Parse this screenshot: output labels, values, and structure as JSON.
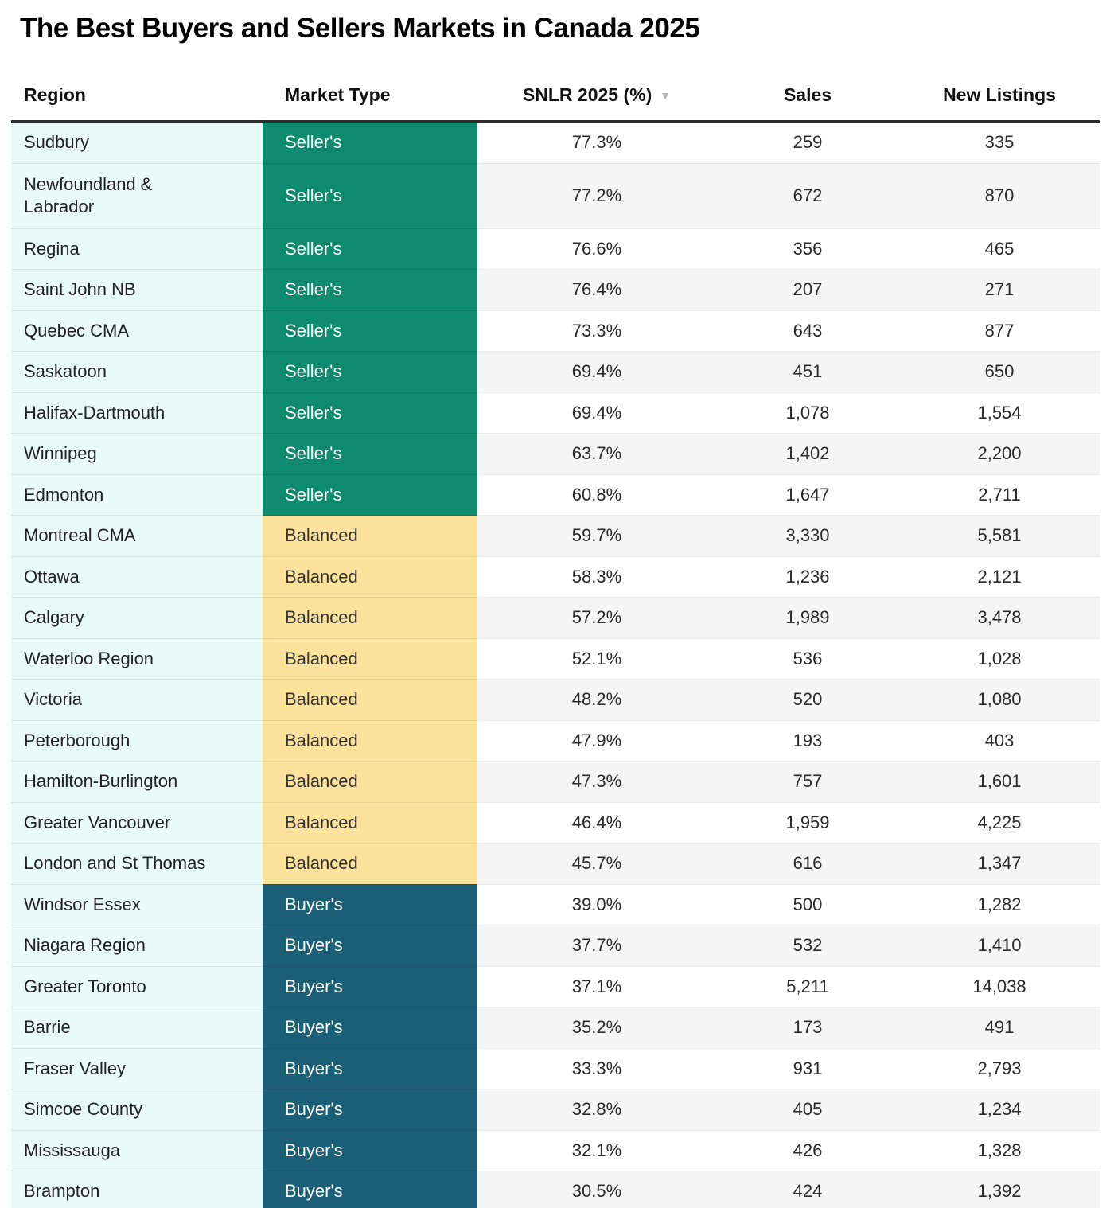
{
  "title": "The Best Buyers and Sellers Markets in Canada 2025",
  "icons": {
    "sort_descending": "▼"
  },
  "colors": {
    "sellers_green": "#0E8A6E",
    "balanced_yellow": "#FDE29B",
    "buyers_blue": "#1B5F76",
    "region_column_bg": "#EAFAF9",
    "alt_row_bg": "#F5F5F5",
    "header_rule": "#2D2D2D"
  },
  "chart_data": {
    "type": "table",
    "title": "The Best Buyers and Sellers Markets in Canada 2025",
    "columns": [
      "Region",
      "Market Type",
      "SNLR 2025 (%)",
      "Sales",
      "New Listings"
    ],
    "sorted_by": "SNLR 2025 (%)",
    "sort_direction": "descending",
    "market_type_legend": [
      "Seller's",
      "Balanced",
      "Buyer's"
    ],
    "rows": [
      {
        "region": "Sudbury",
        "market_type": "Seller's",
        "snlr": "77.3%",
        "sales": "259",
        "new_listings": "335"
      },
      {
        "region": "Newfoundland & Labrador",
        "market_type": "Seller's",
        "snlr": "77.2%",
        "sales": "672",
        "new_listings": "870"
      },
      {
        "region": "Regina",
        "market_type": "Seller's",
        "snlr": "76.6%",
        "sales": "356",
        "new_listings": "465"
      },
      {
        "region": "Saint John NB",
        "market_type": "Seller's",
        "snlr": "76.4%",
        "sales": "207",
        "new_listings": "271"
      },
      {
        "region": "Quebec CMA",
        "market_type": "Seller's",
        "snlr": "73.3%",
        "sales": "643",
        "new_listings": "877"
      },
      {
        "region": "Saskatoon",
        "market_type": "Seller's",
        "snlr": "69.4%",
        "sales": "451",
        "new_listings": "650"
      },
      {
        "region": "Halifax-Dartmouth",
        "market_type": "Seller's",
        "snlr": "69.4%",
        "sales": "1,078",
        "new_listings": "1,554"
      },
      {
        "region": "Winnipeg",
        "market_type": "Seller's",
        "snlr": "63.7%",
        "sales": "1,402",
        "new_listings": "2,200"
      },
      {
        "region": "Edmonton",
        "market_type": "Seller's",
        "snlr": "60.8%",
        "sales": "1,647",
        "new_listings": "2,711"
      },
      {
        "region": "Montreal CMA",
        "market_type": "Balanced",
        "snlr": "59.7%",
        "sales": "3,330",
        "new_listings": "5,581"
      },
      {
        "region": "Ottawa",
        "market_type": "Balanced",
        "snlr": "58.3%",
        "sales": "1,236",
        "new_listings": "2,121"
      },
      {
        "region": "Calgary",
        "market_type": "Balanced",
        "snlr": "57.2%",
        "sales": "1,989",
        "new_listings": "3,478"
      },
      {
        "region": "Waterloo Region",
        "market_type": "Balanced",
        "snlr": "52.1%",
        "sales": "536",
        "new_listings": "1,028"
      },
      {
        "region": "Victoria",
        "market_type": "Balanced",
        "snlr": "48.2%",
        "sales": "520",
        "new_listings": "1,080"
      },
      {
        "region": "Peterborough",
        "market_type": "Balanced",
        "snlr": "47.9%",
        "sales": "193",
        "new_listings": "403"
      },
      {
        "region": "Hamilton-Burlington",
        "market_type": "Balanced",
        "snlr": "47.3%",
        "sales": "757",
        "new_listings": "1,601"
      },
      {
        "region": "Greater Vancouver",
        "market_type": "Balanced",
        "snlr": "46.4%",
        "sales": "1,959",
        "new_listings": "4,225"
      },
      {
        "region": "London and St Thomas",
        "market_type": "Balanced",
        "snlr": "45.7%",
        "sales": "616",
        "new_listings": "1,347"
      },
      {
        "region": "Windsor Essex",
        "market_type": "Buyer's",
        "snlr": "39.0%",
        "sales": "500",
        "new_listings": "1,282"
      },
      {
        "region": "Niagara Region",
        "market_type": "Buyer's",
        "snlr": "37.7%",
        "sales": "532",
        "new_listings": "1,410"
      },
      {
        "region": "Greater Toronto",
        "market_type": "Buyer's",
        "snlr": "37.1%",
        "sales": "5,211",
        "new_listings": "14,038"
      },
      {
        "region": "Barrie",
        "market_type": "Buyer's",
        "snlr": "35.2%",
        "sales": "173",
        "new_listings": "491"
      },
      {
        "region": "Fraser Valley",
        "market_type": "Buyer's",
        "snlr": "33.3%",
        "sales": "931",
        "new_listings": "2,793"
      },
      {
        "region": "Simcoe County",
        "market_type": "Buyer's",
        "snlr": "32.8%",
        "sales": "405",
        "new_listings": "1,234"
      },
      {
        "region": "Mississauga",
        "market_type": "Buyer's",
        "snlr": "32.1%",
        "sales": "426",
        "new_listings": "1,328"
      },
      {
        "region": "Brampton",
        "market_type": "Buyer's",
        "snlr": "30.5%",
        "sales": "424",
        "new_listings": "1,392"
      }
    ]
  }
}
